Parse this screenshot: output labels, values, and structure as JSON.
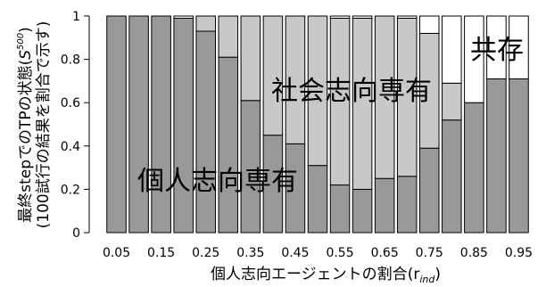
{
  "chart_data": {
    "type": "bar",
    "stacked": true,
    "normalized": true,
    "categories": [
      "0.05",
      "0.1",
      "0.15",
      "0.2",
      "0.25",
      "0.3",
      "0.35",
      "0.4",
      "0.45",
      "0.5",
      "0.55",
      "0.6",
      "0.65",
      "0.7",
      "0.75",
      "0.8",
      "0.85",
      "0.9",
      "0.95"
    ],
    "x_tick_labels": [
      "0.05",
      "0.15",
      "0.25",
      "0.35",
      "0.45",
      "0.55",
      "0.65",
      "0.75",
      "0.85",
      "0.95"
    ],
    "series": [
      {
        "color": "#999999",
        "values": [
          1.0,
          1.0,
          1.0,
          0.99,
          0.93,
          0.81,
          0.61,
          0.45,
          0.41,
          0.31,
          0.22,
          0.2,
          0.25,
          0.26,
          0.39,
          0.52,
          0.6,
          0.71,
          0.71
        ]
      },
      {
        "color": "#c8c8c8",
        "values": [
          0.0,
          0.0,
          0.0,
          0.0,
          0.07,
          0.19,
          0.39,
          0.55,
          0.59,
          0.69,
          0.77,
          0.79,
          0.75,
          0.73,
          0.53,
          0.17,
          0.0,
          0.0,
          0.0
        ]
      },
      {
        "color": "#ffffff",
        "values": [
          0.0,
          0.0,
          0.0,
          0.01,
          0.0,
          0.0,
          0.0,
          0.0,
          0.0,
          0.0,
          0.01,
          0.01,
          0.0,
          0.01,
          0.08,
          0.31,
          0.4,
          0.29,
          0.29
        ]
      }
    ],
    "ylim": [
      0,
      1
    ],
    "y_ticks": [
      0,
      0.2,
      0.4,
      0.6,
      0.8,
      1
    ],
    "y_tick_labels": [
      "0",
      "0.2",
      "0.4",
      "0.6",
      "0.8",
      "1"
    ],
    "xlabel_main": "個人志向エージェントの割合",
    "xlabel_symbol": "(r",
    "xlabel_sub": "ind",
    "xlabel_close": ")",
    "ylabel_line1_main": "最終stepでのTPの状態(",
    "ylabel_line1_symbol": "S",
    "ylabel_line1_sup": "500",
    "ylabel_line1_close": ")",
    "ylabel_line2": "(100試行の結果を割合で示す)",
    "annotations": [
      {
        "text": "個人志向専有",
        "series": 0
      },
      {
        "text": "社会志向専有",
        "series": 1
      },
      {
        "text": "共存",
        "series": 2
      }
    ]
  }
}
